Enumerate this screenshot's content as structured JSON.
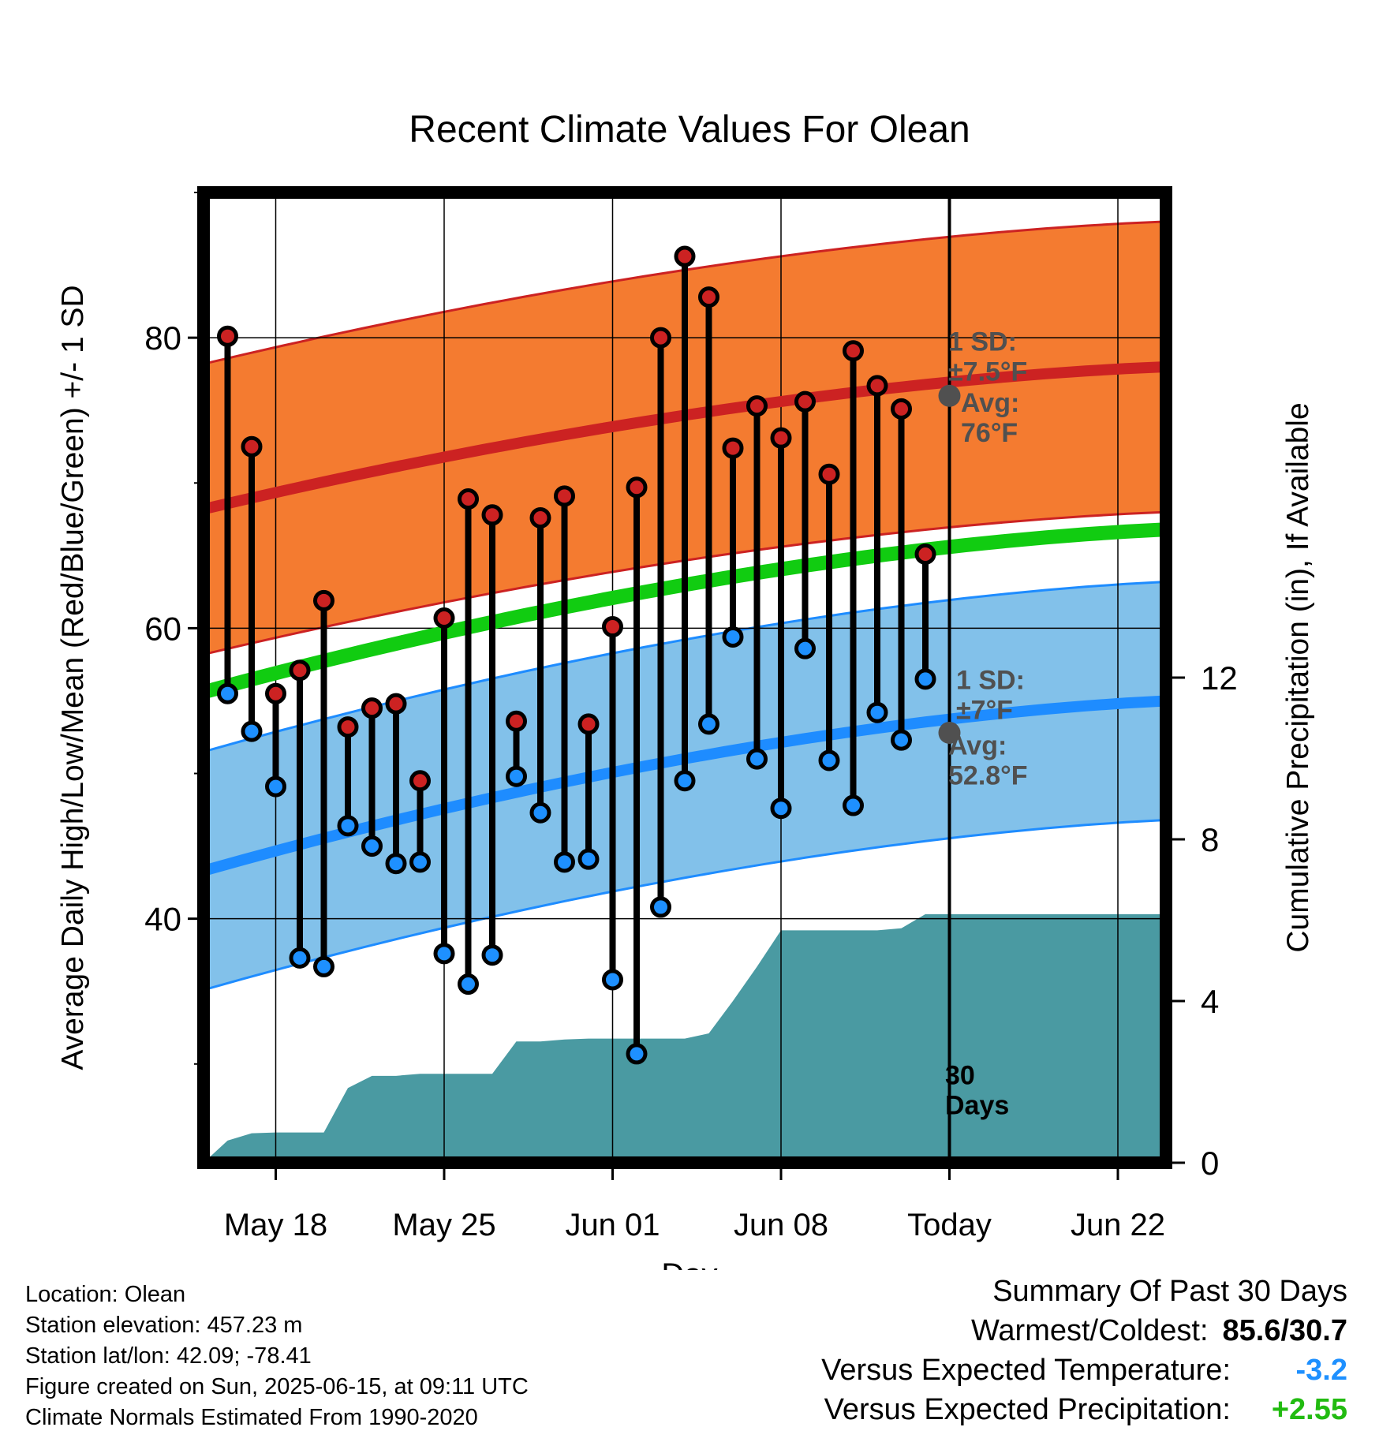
{
  "chart_data": {
    "type": "line",
    "title": "Recent Climate Values For Olean",
    "xlabel": "Day",
    "ylabel_left": "Average Daily High/Low/Mean (Red/Blue/Green) +/- 1 SD",
    "ylabel_right": "Cumulative Precipitation (in), If Available",
    "x_ticks": [
      {
        "date": "2025-05-18",
        "label": "May 18"
      },
      {
        "date": "2025-05-25",
        "label": "May 25"
      },
      {
        "date": "2025-06-01",
        "label": "Jun 01"
      },
      {
        "date": "2025-06-08",
        "label": "Jun 08"
      },
      {
        "date": "2025-06-15",
        "label": "Today"
      },
      {
        "date": "2025-06-22",
        "label": "Jun 22"
      }
    ],
    "xlim": [
      "2025-05-15",
      "2025-06-24"
    ],
    "ylim_left": [
      23.2,
      90
    ],
    "yticks_left": [
      40,
      60,
      80
    ],
    "yticks_left_minor": [
      30,
      50,
      70,
      90
    ],
    "ylim_right": [
      0,
      24
    ],
    "yticks_right": [
      0,
      4,
      8,
      12
    ],
    "grid": true,
    "today": "2025-06-15",
    "days_label": "30\nDays",
    "normals": {
      "dates": [
        "2025-05-15",
        "2025-06-24"
      ],
      "high_mean": [
        68.2,
        78.0
      ],
      "high_sd": 10.0,
      "mean": [
        55.6,
        66.8
      ],
      "low_mean": [
        43.3,
        55.0
      ],
      "low_sd": 8.2,
      "colors": {
        "high_band": "#f47b30",
        "high_line": "#cc2222",
        "mean_line": "#11cc11",
        "low_band": "#82c1ea",
        "low_line": "#1e8cff"
      }
    },
    "high_sd_label": "1 SD:\n±7.5°F",
    "high_avg_label": "Avg:\n76°F",
    "high_avg_value": 76,
    "low_sd_label": "1 SD:\n±7°F",
    "low_avg_label": "Avg:\n52.8°F",
    "low_avg_value": 52.8,
    "daily": {
      "dates": [
        "2025-05-16",
        "2025-05-17",
        "2025-05-18",
        "2025-05-19",
        "2025-05-20",
        "2025-05-21",
        "2025-05-22",
        "2025-05-23",
        "2025-05-24",
        "2025-05-25",
        "2025-05-26",
        "2025-05-27",
        "2025-05-28",
        "2025-05-29",
        "2025-05-30",
        "2025-05-31",
        "2025-06-01",
        "2025-06-02",
        "2025-06-03",
        "2025-06-04",
        "2025-06-05",
        "2025-06-06",
        "2025-06-07",
        "2025-06-08",
        "2025-06-09",
        "2025-06-10",
        "2025-06-11",
        "2025-06-12",
        "2025-06-13",
        "2025-06-14"
      ],
      "high": [
        80.1,
        72.5,
        55.5,
        57.1,
        61.9,
        53.2,
        54.5,
        54.8,
        49.5,
        60.7,
        68.9,
        67.8,
        53.6,
        67.6,
        69.1,
        53.4,
        60.1,
        69.7,
        80.0,
        85.6,
        82.8,
        72.4,
        75.3,
        73.1,
        75.6,
        70.6,
        79.1,
        76.7,
        75.1,
        65.1
      ],
      "low": [
        55.5,
        52.9,
        49.1,
        37.3,
        36.7,
        46.4,
        45.0,
        43.8,
        43.9,
        37.6,
        35.5,
        37.5,
        49.8,
        47.3,
        43.9,
        44.1,
        35.8,
        30.7,
        40.8,
        49.5,
        53.4,
        59.4,
        51.0,
        47.6,
        58.6,
        50.9,
        47.8,
        54.2,
        52.3,
        56.5
      ]
    },
    "precip": {
      "dates": [
        "2025-05-15",
        "2025-05-16",
        "2025-05-17",
        "2025-05-18",
        "2025-05-19",
        "2025-05-20",
        "2025-05-21",
        "2025-05-22",
        "2025-05-23",
        "2025-05-24",
        "2025-05-25",
        "2025-05-26",
        "2025-05-27",
        "2025-05-28",
        "2025-05-29",
        "2025-05-30",
        "2025-05-31",
        "2025-06-01",
        "2025-06-02",
        "2025-06-03",
        "2025-06-04",
        "2025-06-05",
        "2025-06-06",
        "2025-06-07",
        "2025-06-08",
        "2025-06-09",
        "2025-06-10",
        "2025-06-11",
        "2025-06-12",
        "2025-06-13",
        "2025-06-14",
        "2025-06-15",
        "2025-06-24"
      ],
      "values": [
        0.0,
        0.55,
        0.73,
        0.75,
        0.75,
        0.75,
        1.85,
        2.15,
        2.15,
        2.2,
        2.2,
        2.2,
        2.2,
        3.0,
        3.0,
        3.05,
        3.07,
        3.07,
        3.07,
        3.07,
        3.07,
        3.2,
        4.0,
        4.85,
        5.75,
        5.75,
        5.75,
        5.75,
        5.75,
        5.8,
        6.15,
        6.15,
        6.15
      ],
      "color": "#4a9aa2"
    }
  },
  "footer": {
    "location": "Location: Olean",
    "elevation": "Station elevation: 457.23 m",
    "latlon": "Station lat/lon: 42.09; -78.41",
    "created": "Figure created on Sun, 2025-06-15, at 09:11 UTC",
    "normals_source": "Climate Normals Estimated From 1990-2020"
  },
  "summary": {
    "title": "Summary Of Past 30 Days",
    "warm_cold_label": "Warmest/Coldest:",
    "warm_cold_value": "85.6/30.7",
    "temp_label": "Versus Expected Temperature:",
    "temp_value": "-3.2",
    "precip_label": "Versus Expected Precipitation:",
    "precip_value": "+2.55",
    "temp_color": "#1e90ff",
    "precip_color": "#22bb11"
  }
}
